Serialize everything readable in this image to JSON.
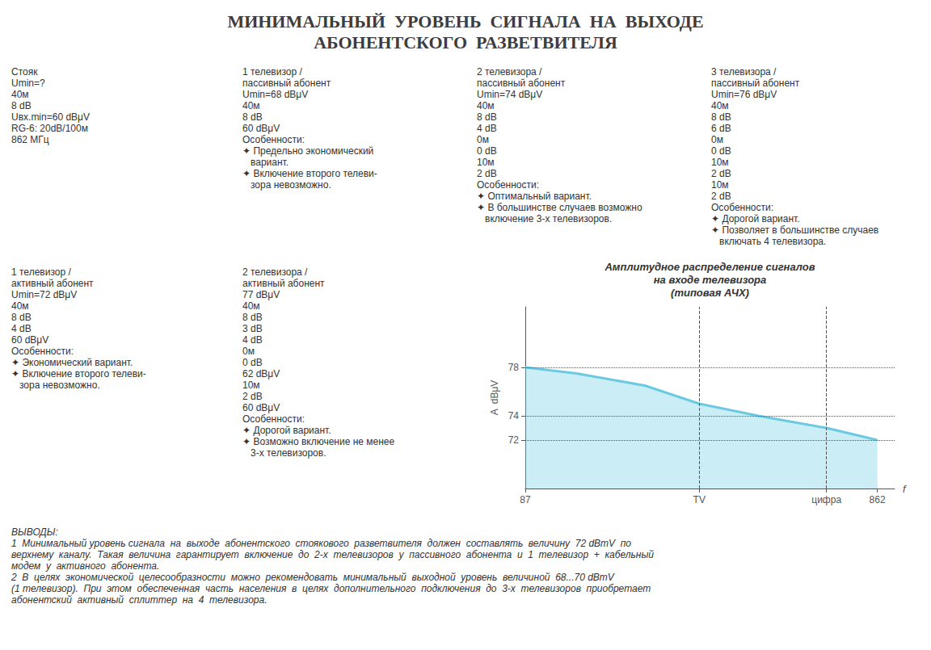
{
  "chart_data": {
    "type": "line",
    "title": "МИНИМАЛЬНЫЙ  УРОВЕНЬ  СИГНАЛА  НА  ВЫХОДЕ\nАБОНЕНТСКОГО  РАЗВЕТВИТЕЛЯ",
    "x": [
      87,
      200,
      350,
      470,
      600,
      750,
      862
    ],
    "values": [
      78,
      77.5,
      76.5,
      75,
      74,
      73,
      72
    ],
    "color": "#6BCAE2",
    "xlim": [
      87,
      900
    ],
    "xticks": [
      87,
      {
        "value": 470,
        "label": "TV"
      },
      {
        "value": 750,
        "label": "цифра"
      },
      862
    ],
    "ylim": [
      68,
      83
    ],
    "yticks": [
      72,
      74,
      78
    ],
    "vlines": [
      470,
      750
    ],
    "xlabel": "f",
    "ylabel": "A  dBμV",
    "grid": true,
    "annotations": [
      [
        "Стояк",
        "Umin=?",
        "40м",
        "8 dB",
        "Uвх.min=60 dBμV",
        "RG-6: 20dB/100м",
        "862 МГц"
      ],
      [
        "1 телевизор /",
        "пассивный абонент",
        "Umin=68 dBμV",
        "40м",
        "8 dB",
        "60 dBμV",
        "Особенности:",
        "✦ Предельно экономический",
        "   вариант.",
        "✦ Включение второго телеви-",
        "   зора невозможно."
      ],
      [
        "2 телевизора /",
        "пассивный абонент",
        "Umin=74 dBμV",
        "40м",
        "8 dB",
        "4 dB",
        "0м",
        "0 dB",
        "10м",
        "2 dB",
        "Особенности:",
        "✦ Оптимальный вариант.",
        "✦ В большинстве случаев возможно",
        "   включение 3-х телевизоров."
      ],
      [
        "3 телевизора /",
        "пассивный абонент",
        "Umin=76 dBμV",
        "40м",
        "8 dB",
        "6 dB",
        "0м",
        "0 dB",
        "10м",
        "2 dB",
        "10м",
        "2 dB",
        "Особенности:",
        "✦ Дорогой вариант.",
        "✦ Позволяет в большинстве случаев",
        "   включать 4 телевизора."
      ],
      [
        "1 телевизор /",
        "активный абонент",
        "Umin=72 dBμV",
        "40м",
        "8 dB",
        "4 dB",
        "60 dBμV",
        "Особенности:",
        "✦ Экономический вариант.",
        "✦ Включение второго телеви-",
        "   зора невозможно."
      ],
      [
        "2 телевизора /",
        "активный абонент",
        "77 dBμV",
        "40м",
        "8 dB",
        "3 dB",
        "4 dB",
        "0м",
        "0 dB",
        "62 dBμV",
        "10м",
        "2 dB",
        "60 dBμV",
        "Особенности:",
        "✦ Дорогой вариант.",
        "✦ Возможно включение не менее",
        "   3-х телевизоров."
      ],
      [
        "Амплитудное распределение сигналов",
        "на входе телевизора",
        "(типовая АЧХ)"
      ],
      [
        "ВЫВОДЫ:",
        "1  Минимальный уровень сигнала  на  выходе  абонентского  стоякового  разветвителя  должен  составлять  величину  72 dBmV  по",
        "верхнему  каналу.  Такая  величина  гарантирует  включение  до  2-х  телевизоров  у  пассивного  абонента  и  1  телевизор  +  кабельный",
        "модем  у  активного  абонента.",
        "2  В  целях  экономической  целесообразности  можно  рекомендовать  минимальный  выходной  уровень  величиной  68...70 dBmV",
        "(1 телевизор).  При  этом  обеспеченная  часть  населения  в  целях  дополнительного  подключения  до  3-х  телевизоров  приобретает",
        "абонентский  активный  сплиттер  на  4  телевизора."
      ]
    ]
  }
}
